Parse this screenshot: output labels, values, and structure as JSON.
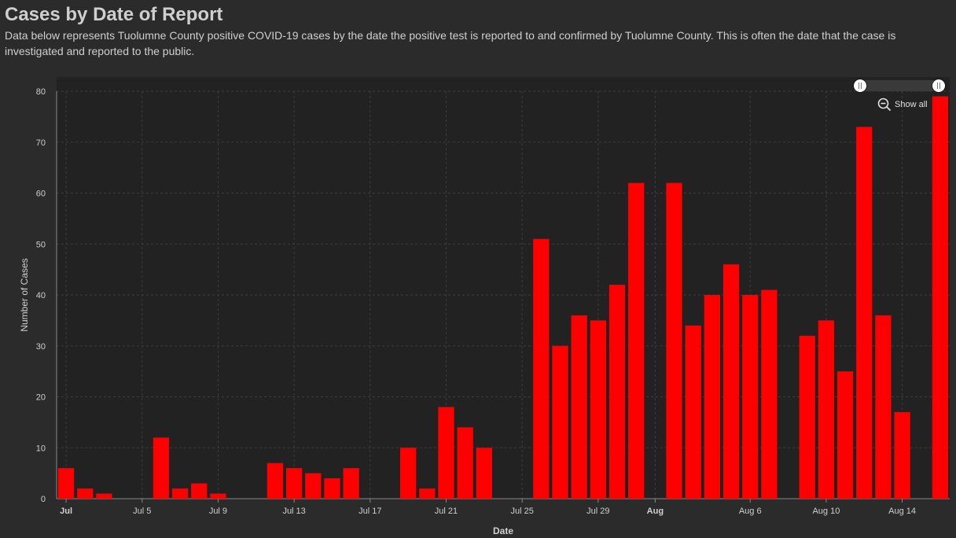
{
  "header": {
    "title": "Cases by Date of Report",
    "description": "Data below represents Tuolumne County positive COVID-19 cases by the date the positive test is reported to and confirmed by Tuolumne County. This is often the date that the case is investigated and reported to the public."
  },
  "controls": {
    "show_all_label": "Show all",
    "zoom_out_icon": "zoom-out-icon"
  },
  "colors": {
    "bar": "#ff0000",
    "background": "#2b2b2b",
    "plot_background": "#222222",
    "grid": "#3d3d3d",
    "text": "#cfcfcf"
  },
  "chart_data": {
    "type": "bar",
    "title": "Cases by Date of Report",
    "xlabel": "Date",
    "ylabel": "Number of Cases",
    "ylim": [
      0,
      80
    ],
    "yticks": [
      0,
      10,
      20,
      30,
      40,
      50,
      60,
      70,
      80
    ],
    "grid": true,
    "categories": [
      "Jul 1",
      "Jul 2",
      "Jul 3",
      "Jul 4",
      "Jul 5",
      "Jul 6",
      "Jul 7",
      "Jul 8",
      "Jul 9",
      "Jul 10",
      "Jul 11",
      "Jul 12",
      "Jul 13",
      "Jul 14",
      "Jul 15",
      "Jul 16",
      "Jul 17",
      "Jul 18",
      "Jul 19",
      "Jul 20",
      "Jul 21",
      "Jul 22",
      "Jul 23",
      "Jul 24",
      "Jul 25",
      "Jul 26",
      "Jul 27",
      "Jul 28",
      "Jul 29",
      "Jul 30",
      "Jul 31",
      "Aug 1",
      "Aug 2",
      "Aug 3",
      "Aug 4",
      "Aug 5",
      "Aug 6",
      "Aug 7",
      "Aug 8",
      "Aug 9",
      "Aug 10",
      "Aug 11",
      "Aug 12",
      "Aug 13",
      "Aug 14",
      "Aug 15",
      "Aug 16"
    ],
    "values": [
      6,
      2,
      1,
      0,
      0,
      12,
      2,
      3,
      1,
      0,
      0,
      7,
      6,
      5,
      4,
      6,
      0,
      0,
      10,
      2,
      18,
      14,
      10,
      0,
      0,
      51,
      30,
      36,
      35,
      42,
      62,
      0,
      62,
      34,
      40,
      46,
      40,
      41,
      0,
      32,
      35,
      25,
      73,
      36,
      17,
      0,
      79
    ],
    "x_ticks": [
      {
        "label": "Jul",
        "index": 0,
        "bold": true
      },
      {
        "label": "Jul 5",
        "index": 4,
        "bold": false
      },
      {
        "label": "Jul 9",
        "index": 8,
        "bold": false
      },
      {
        "label": "Jul 13",
        "index": 12,
        "bold": false
      },
      {
        "label": "Jul 17",
        "index": 16,
        "bold": false
      },
      {
        "label": "Jul 21",
        "index": 20,
        "bold": false
      },
      {
        "label": "Jul 25",
        "index": 24,
        "bold": false
      },
      {
        "label": "Jul 29",
        "index": 28,
        "bold": false
      },
      {
        "label": "Aug",
        "index": 31,
        "bold": true
      },
      {
        "label": "Aug 6",
        "index": 36,
        "bold": false
      },
      {
        "label": "Aug 10",
        "index": 40,
        "bold": false
      },
      {
        "label": "Aug 14",
        "index": 44,
        "bold": false
      }
    ]
  }
}
